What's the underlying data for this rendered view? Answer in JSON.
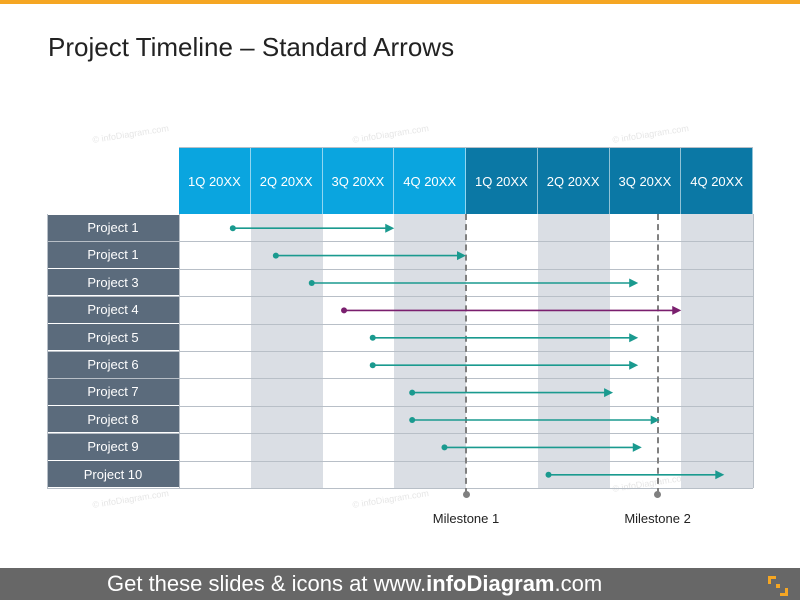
{
  "title": "Project Timeline – Standard Arrows",
  "watermark": "© infoDiagram.com",
  "quarters": [
    "1Q 20XX",
    "2Q 20XX",
    "3Q 20XX",
    "4Q 20XX",
    "1Q 20XX",
    "2Q 20XX",
    "3Q 20XX",
    "4Q 20XX"
  ],
  "colors": {
    "year1": "#0aa5df",
    "year2": "#0b78a5",
    "arrow": "#1a9a8f",
    "arrow_highlight": "#7a1f6e",
    "row_label": "#5b6b7c",
    "accent": "#f5a623"
  },
  "projects": [
    {
      "label": "Project 1",
      "start": 0.75,
      "end": 3.0,
      "color": "teal"
    },
    {
      "label": "Project 1",
      "start": 1.35,
      "end": 4.0,
      "color": "teal"
    },
    {
      "label": "Project 3",
      "start": 1.85,
      "end": 6.4,
      "color": "teal"
    },
    {
      "label": "Project 4",
      "start": 2.3,
      "end": 7.0,
      "color": "purple"
    },
    {
      "label": "Project 5",
      "start": 2.7,
      "end": 6.4,
      "color": "teal"
    },
    {
      "label": "Project 6",
      "start": 2.7,
      "end": 6.4,
      "color": "teal"
    },
    {
      "label": "Project 7",
      "start": 3.25,
      "end": 6.05,
      "color": "teal"
    },
    {
      "label": "Project 8",
      "start": 3.25,
      "end": 6.7,
      "color": "teal"
    },
    {
      "label": "Project 9",
      "start": 3.7,
      "end": 6.45,
      "color": "teal"
    },
    {
      "label": "Project 10",
      "start": 5.15,
      "end": 7.6,
      "color": "teal"
    }
  ],
  "milestones": [
    {
      "label": "Milestone 1",
      "at": 4.0
    },
    {
      "label": "Milestone 2",
      "at": 6.67
    }
  ],
  "footer": {
    "prefix": "Get these slides & icons at www.",
    "brand": "infoDiagram",
    "suffix": ".com"
  }
}
